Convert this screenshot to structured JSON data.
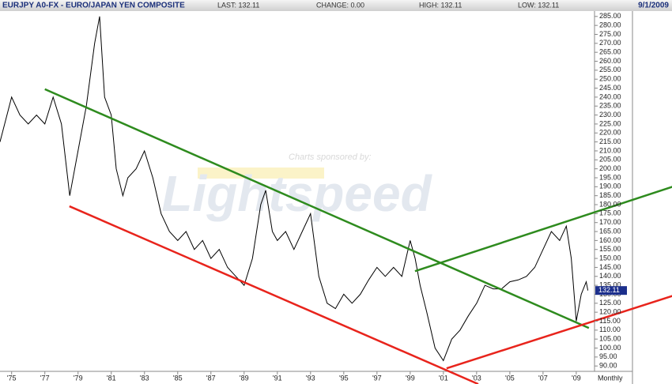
{
  "chart_data": {
    "type": "line",
    "title": "EURJPY A0-FX - EURO/JAPAN YEN COMPOSITE",
    "header": {
      "last": "LAST: 132.11",
      "change": "CHANGE: 0.00",
      "high": "HIGH: 132.11",
      "low": "LOW: 132.11",
      "date": "9/1/2009"
    },
    "period": "Monthly",
    "watermark": {
      "sponsor": "Charts sponsored by:",
      "brand": "Lightspeed"
    },
    "price_tag": "132.11",
    "x": [
      1974.3,
      1975.0,
      1975.5,
      1976.0,
      1976.5,
      1977.0,
      1977.5,
      1978.0,
      1978.5,
      1979.0,
      1979.5,
      1980.0,
      1980.3,
      1980.6,
      1981.0,
      1981.3,
      1981.7,
      1982.0,
      1982.5,
      1983.0,
      1983.5,
      1984.0,
      1984.5,
      1985.0,
      1985.5,
      1986.0,
      1986.5,
      1987.0,
      1987.5,
      1988.0,
      1988.5,
      1989.0,
      1989.5,
      1990.0,
      1990.3,
      1990.7,
      1991.0,
      1991.5,
      1992.0,
      1992.5,
      1993.0,
      1993.5,
      1994.0,
      1994.5,
      1995.0,
      1995.5,
      1996.0,
      1996.5,
      1997.0,
      1997.5,
      1998.0,
      1998.5,
      1999.0,
      1999.3,
      1999.6,
      2000.0,
      2000.5,
      2001.0,
      2001.5,
      2002.0,
      2002.5,
      2003.0,
      2003.5,
      2004.0,
      2004.5,
      2005.0,
      2005.5,
      2006.0,
      2006.5,
      2007.0,
      2007.5,
      2008.0,
      2008.4,
      2008.7,
      2009.0,
      2009.3,
      2009.6,
      2009.7
    ],
    "series": [
      {
        "name": "EURJPY",
        "color": "#000000",
        "values": [
          215,
          240,
          230,
          225,
          230,
          225,
          240,
          225,
          185,
          210,
          235,
          270,
          285,
          240,
          230,
          200,
          185,
          195,
          200,
          210,
          195,
          175,
          165,
          160,
          165,
          155,
          160,
          150,
          155,
          145,
          140,
          135,
          150,
          180,
          188,
          165,
          160,
          165,
          155,
          165,
          175,
          140,
          125,
          122,
          130,
          125,
          130,
          138,
          145,
          140,
          145,
          140,
          160,
          150,
          135,
          120,
          100,
          93,
          105,
          110,
          118,
          125,
          135,
          133,
          133,
          137,
          138,
          140,
          145,
          155,
          165,
          160,
          168,
          150,
          115,
          130,
          137,
          132.11
        ]
      }
    ],
    "trend_lines": [
      {
        "color": "#2e8b1e",
        "x": [
          1977.0,
          2009.76
        ],
        "y": [
          244.4,
          111.2
        ]
      },
      {
        "color": "#e8241c",
        "x": [
          1978.48,
          2003.1
        ],
        "y": [
          179.1,
          79.9
        ]
      },
      {
        "color": "#e8241c",
        "x": [
          2001.19,
          2015.0
        ],
        "y": [
          88.7,
          129.7
        ]
      },
      {
        "color": "#2e8b1e",
        "x": [
          1999.29,
          2015.0
        ],
        "y": [
          142.9,
          190.6
        ]
      }
    ],
    "xlim": [
      1974.3,
      2010.1
    ],
    "ylim": [
      87,
      288
    ],
    "xticks": [
      {
        "value": 1975,
        "label": "'75"
      },
      {
        "value": 1977,
        "label": "'77"
      },
      {
        "value": 1979,
        "label": "'79"
      },
      {
        "value": 1981,
        "label": "'81"
      },
      {
        "value": 1983,
        "label": "'83"
      },
      {
        "value": 1985,
        "label": "'85"
      },
      {
        "value": 1987,
        "label": "'87"
      },
      {
        "value": 1989,
        "label": "'89"
      },
      {
        "value": 1991,
        "label": "'91"
      },
      {
        "value": 1993,
        "label": "'93"
      },
      {
        "value": 1995,
        "label": "'95"
      },
      {
        "value": 1997,
        "label": "'97"
      },
      {
        "value": 1999,
        "label": "'99"
      },
      {
        "value": 2001,
        "label": "'01"
      },
      {
        "value": 2003,
        "label": "'03"
      },
      {
        "value": 2005,
        "label": "'05"
      },
      {
        "value": 2007,
        "label": "'07"
      },
      {
        "value": 2009,
        "label": "'09"
      }
    ],
    "yticks": [
      {
        "value": 90,
        "label": "90.00"
      },
      {
        "value": 95,
        "label": "95.00"
      },
      {
        "value": 100,
        "label": "100.00"
      },
      {
        "value": 105,
        "label": "105.00"
      },
      {
        "value": 110,
        "label": "110.00"
      },
      {
        "value": 115,
        "label": "115.00"
      },
      {
        "value": 120,
        "label": "120.00"
      },
      {
        "value": 125,
        "label": "125.00"
      },
      {
        "value": 130,
        "label": "130.00"
      },
      {
        "value": 135,
        "label": "135.00"
      },
      {
        "value": 140,
        "label": "140.00"
      },
      {
        "value": 145,
        "label": "145.00"
      },
      {
        "value": 150,
        "label": "150.00"
      },
      {
        "value": 155,
        "label": "155.00"
      },
      {
        "value": 160,
        "label": "160.00"
      },
      {
        "value": 165,
        "label": "165.00"
      },
      {
        "value": 170,
        "label": "170.00"
      },
      {
        "value": 175,
        "label": "175.00"
      },
      {
        "value": 180,
        "label": "180.00"
      },
      {
        "value": 185,
        "label": "185.00"
      },
      {
        "value": 190,
        "label": "190.00"
      },
      {
        "value": 195,
        "label": "195.00"
      },
      {
        "value": 200,
        "label": "200.00"
      },
      {
        "value": 205,
        "label": "205.00"
      },
      {
        "value": 210,
        "label": "210.00"
      },
      {
        "value": 215,
        "label": "215.00"
      },
      {
        "value": 220,
        "label": "220.00"
      },
      {
        "value": 225,
        "label": "225.00"
      },
      {
        "value": 230,
        "label": "230.00"
      },
      {
        "value": 235,
        "label": "235.00"
      },
      {
        "value": 240,
        "label": "240.00"
      },
      {
        "value": 245,
        "label": "245.00"
      },
      {
        "value": 250,
        "label": "250.00"
      },
      {
        "value": 255,
        "label": "255.00"
      },
      {
        "value": 260,
        "label": "260.00"
      },
      {
        "value": 265,
        "label": "265.00"
      },
      {
        "value": 270,
        "label": "270.00"
      },
      {
        "value": 275,
        "label": "275.00"
      },
      {
        "value": 280,
        "label": "280.00"
      },
      {
        "value": 285,
        "label": "285.00"
      }
    ]
  }
}
